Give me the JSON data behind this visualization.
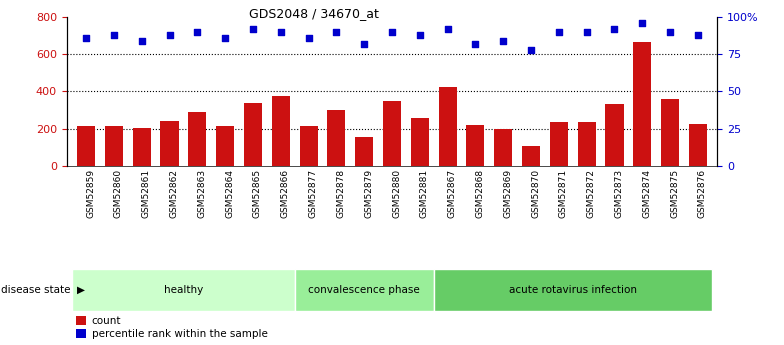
{
  "title": "GDS2048 / 34670_at",
  "samples": [
    "GSM52859",
    "GSM52860",
    "GSM52861",
    "GSM52862",
    "GSM52863",
    "GSM52864",
    "GSM52865",
    "GSM52866",
    "GSM52877",
    "GSM52878",
    "GSM52879",
    "GSM52880",
    "GSM52881",
    "GSM52867",
    "GSM52868",
    "GSM52869",
    "GSM52870",
    "GSM52871",
    "GSM52872",
    "GSM52873",
    "GSM52874",
    "GSM52875",
    "GSM52876"
  ],
  "counts": [
    215,
    215,
    205,
    240,
    290,
    215,
    335,
    375,
    215,
    300,
    155,
    350,
    255,
    425,
    220,
    200,
    105,
    235,
    235,
    330,
    665,
    360,
    225
  ],
  "percentiles": [
    86,
    88,
    84,
    88,
    90,
    86,
    92,
    90,
    86,
    90,
    82,
    90,
    88,
    92,
    82,
    84,
    78,
    90,
    90,
    92,
    96,
    90,
    88
  ],
  "groups": [
    {
      "label": "healthy",
      "start": 0,
      "end": 8,
      "color": "#ccffcc"
    },
    {
      "label": "convalescence phase",
      "start": 8,
      "end": 13,
      "color": "#99ee99"
    },
    {
      "label": "acute rotavirus infection",
      "start": 13,
      "end": 23,
      "color": "#66cc66"
    }
  ],
  "bar_color": "#cc1111",
  "dot_color": "#0000cc",
  "left_ylim": [
    0,
    800
  ],
  "right_ylim": [
    0,
    100
  ],
  "left_yticks": [
    0,
    200,
    400,
    600,
    800
  ],
  "right_yticks": [
    0,
    25,
    50,
    75,
    100
  ],
  "right_yticklabels": [
    "0",
    "25",
    "50",
    "75",
    "100%"
  ],
  "grid_values": [
    200,
    400,
    600
  ],
  "xtick_bg_color": "#c8c8c8",
  "background_color": "#ffffff",
  "disease_state_label": "disease state"
}
